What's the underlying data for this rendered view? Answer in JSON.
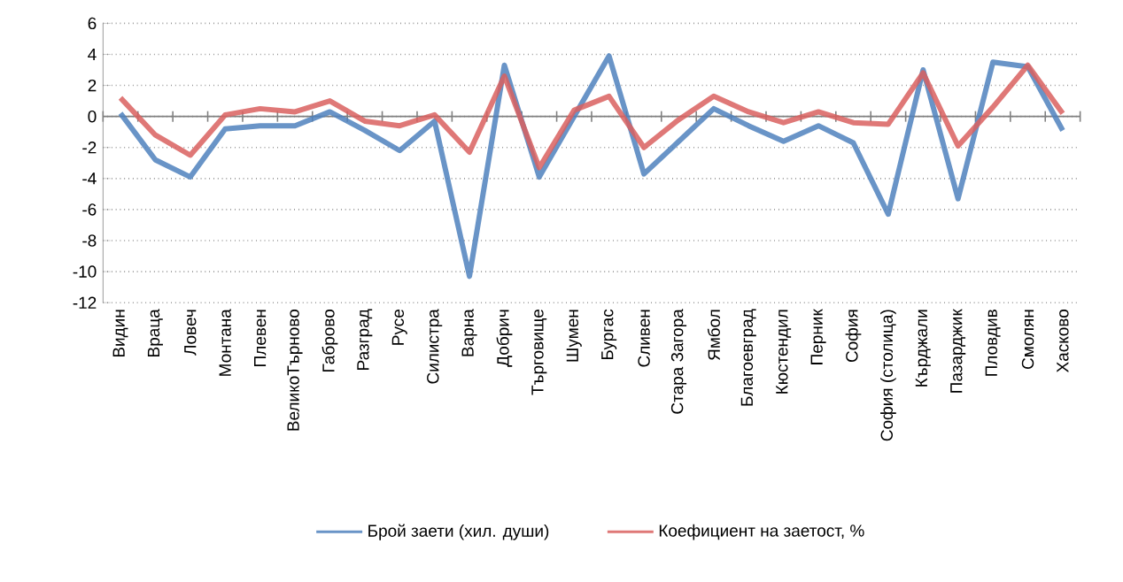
{
  "chart_data": {
    "type": "line",
    "categories": [
      "Видин",
      "Враца",
      "Ловеч",
      "Монтана",
      "Плевен",
      "ВеликоТърново",
      "Габрово",
      "Разград",
      "Русе",
      "Силистра",
      "Варна",
      "Добрич",
      "Търговище",
      "Шумен",
      "Бургас",
      "Сливен",
      "Стара Загора",
      "Ямбол",
      "Благоевград",
      "Кюстендил",
      "Перник",
      "София",
      "София (столица)",
      "Кърджали",
      "Пазарджик",
      "Пловдив",
      "Смолян",
      "Хасково"
    ],
    "series": [
      {
        "name": "Брой заети (хил. души)",
        "color": "#4f81bd",
        "values": [
          0.2,
          -2.8,
          -3.9,
          -0.8,
          -0.6,
          -0.6,
          0.3,
          -0.9,
          -2.2,
          -0.3,
          -10.3,
          3.3,
          -3.9,
          0.0,
          3.9,
          -3.7,
          -1.6,
          0.5,
          -0.6,
          -1.6,
          -0.6,
          -1.7,
          -6.3,
          3.0,
          -5.3,
          3.5,
          3.2,
          -0.9
        ]
      },
      {
        "name": "Коефициент на заетост, %",
        "color": "#d9605f",
        "values": [
          1.2,
          -1.2,
          -2.5,
          0.1,
          0.5,
          0.3,
          1.0,
          -0.3,
          -0.6,
          0.1,
          -2.3,
          2.6,
          -3.3,
          0.4,
          1.3,
          -2.0,
          -0.2,
          1.3,
          0.3,
          -0.4,
          0.3,
          -0.4,
          -0.5,
          2.8,
          -1.9,
          0.6,
          3.3,
          0.2
        ]
      }
    ],
    "ylim": [
      -12,
      6
    ],
    "yticks": [
      -12,
      -10,
      -8,
      -6,
      -4,
      -2,
      0,
      2,
      4,
      6
    ],
    "grid": "y",
    "legend": "bottom",
    "marker": "none",
    "line_style": "solid"
  }
}
